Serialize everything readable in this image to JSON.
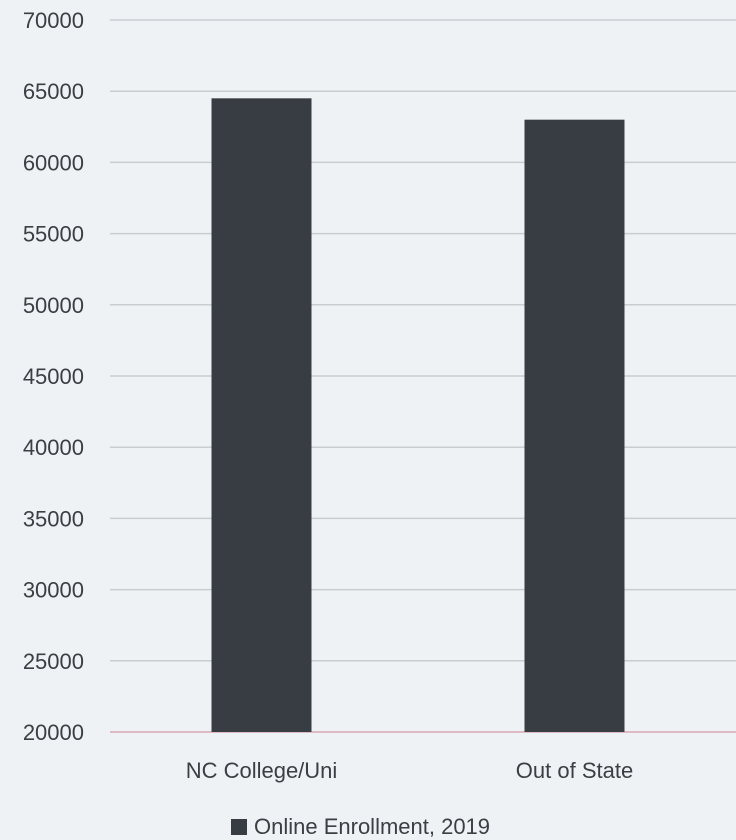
{
  "chart_data": {
    "type": "bar",
    "title": "",
    "xlabel": "",
    "ylabel": "",
    "categories": [
      "NC College/Uni",
      "Out of State"
    ],
    "series": [
      {
        "name": "Online Enrollment, 2019",
        "values": [
          64500,
          63000
        ],
        "color": "#373d42"
      }
    ],
    "ylim": [
      20000,
      70000
    ],
    "yticks": [
      20000,
      25000,
      30000,
      35000,
      40000,
      45000,
      50000,
      55000,
      60000,
      65000,
      70000
    ],
    "grid": true,
    "legend": "bottom"
  }
}
